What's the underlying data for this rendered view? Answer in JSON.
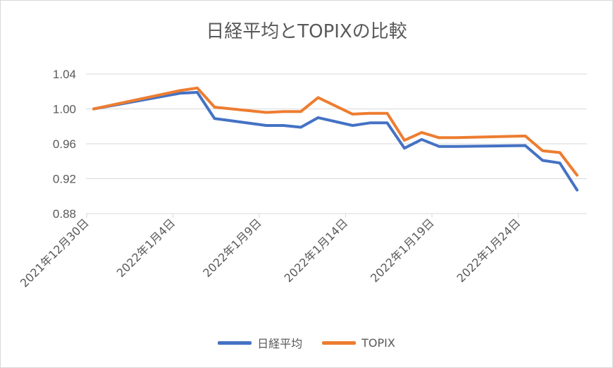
{
  "chart_data": {
    "type": "line",
    "title": "日経平均とTOPIXの比較",
    "xlabel": "",
    "ylabel": "",
    "ylim": [
      0.88,
      1.04
    ],
    "yticks": [
      "0.88",
      "0.92",
      "0.96",
      "1.00",
      "1.04"
    ],
    "ytick_values": [
      0.88,
      0.92,
      0.96,
      1.0,
      1.04
    ],
    "xticks": [
      "2021年12月30日",
      "2022年1月4日",
      "2022年1月9日",
      "2022年1月14日",
      "2022年1月19日",
      "2022年1月24日"
    ],
    "xtick_days": [
      0,
      5,
      10,
      15,
      20,
      25
    ],
    "x_days": [
      0,
      5,
      6,
      7,
      10,
      11,
      12,
      13,
      15,
      16,
      17,
      18,
      19,
      20,
      21,
      25,
      26,
      27,
      28
    ],
    "series": [
      {
        "name": "日経平均",
        "color": "#4472C4",
        "values": [
          1.0,
          1.018,
          1.019,
          0.989,
          0.981,
          0.981,
          0.979,
          0.99,
          0.981,
          0.984,
          0.984,
          0.955,
          0.965,
          0.957,
          0.957,
          0.958,
          0.941,
          0.938,
          0.907
        ]
      },
      {
        "name": "TOPIX",
        "color": "#ED7D31",
        "values": [
          1.0,
          1.021,
          1.024,
          1.002,
          0.996,
          0.997,
          0.997,
          1.013,
          0.994,
          0.995,
          0.995,
          0.964,
          0.973,
          0.967,
          0.967,
          0.969,
          0.952,
          0.95,
          0.924
        ]
      }
    ],
    "grid": true,
    "legend": "bottom"
  }
}
